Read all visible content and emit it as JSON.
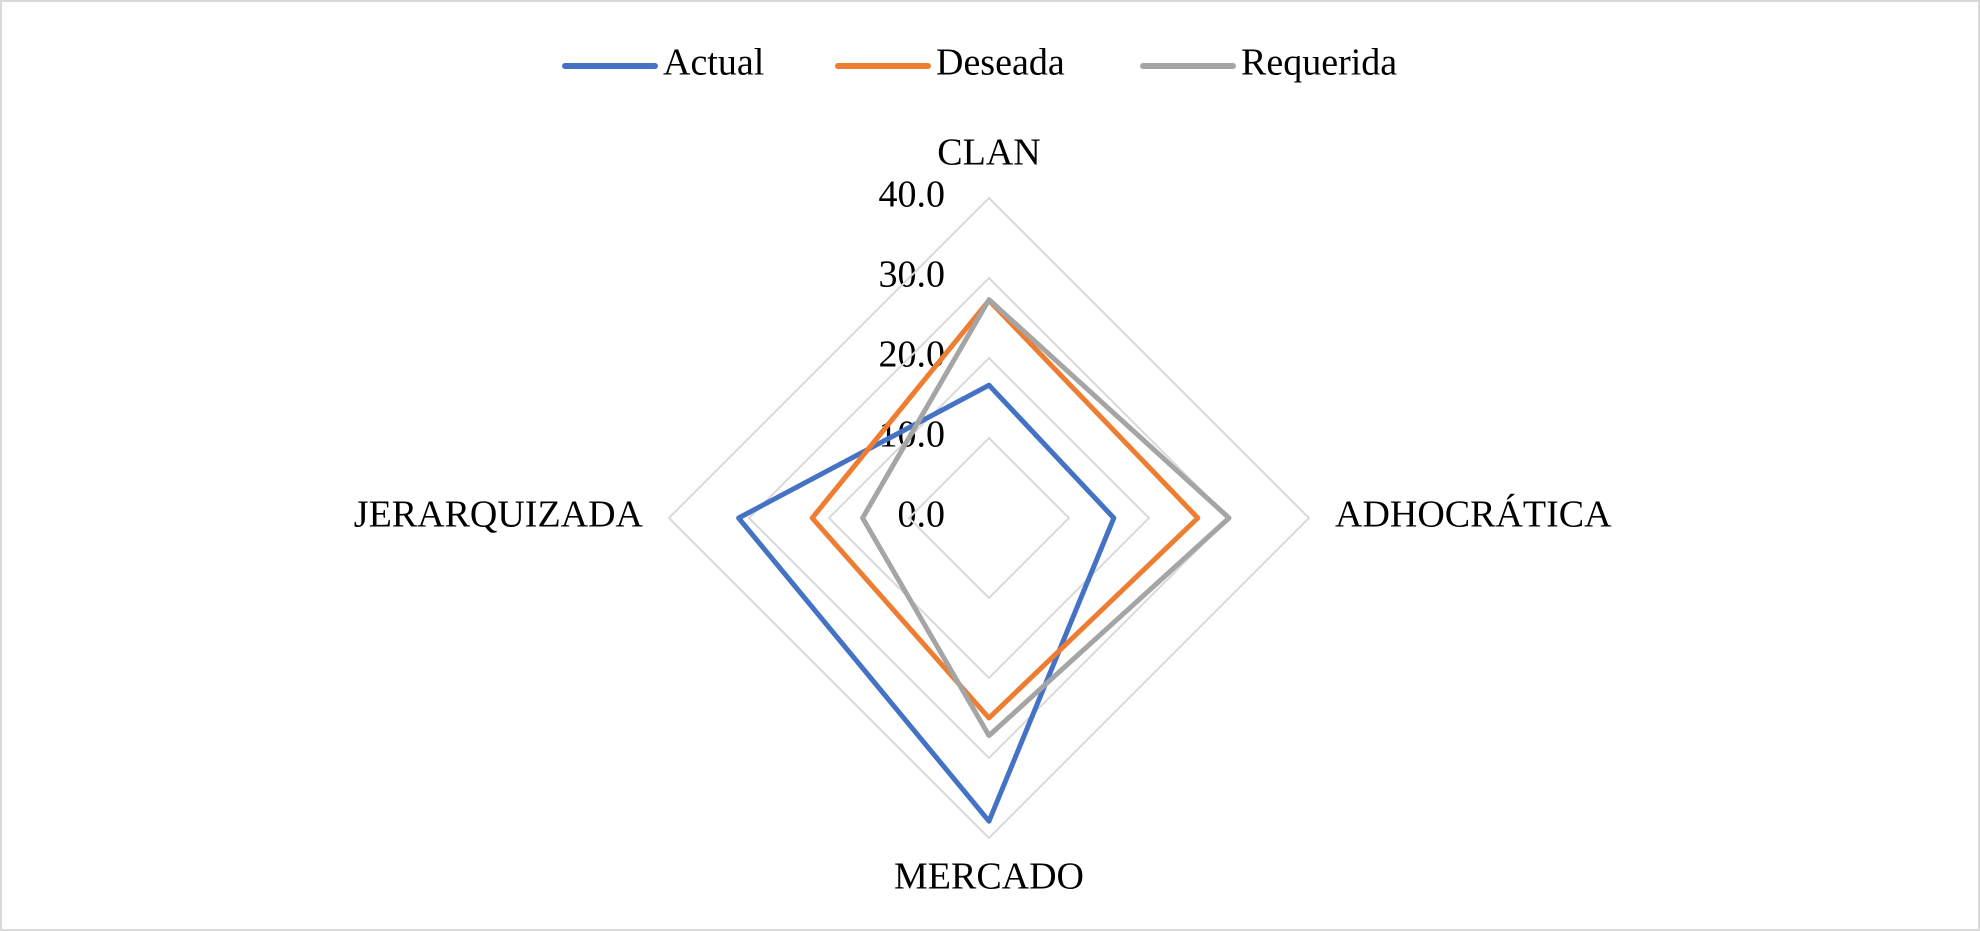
{
  "chart_data": {
    "type": "radar",
    "categories": [
      "CLAN",
      "ADHOCRÁTICA",
      "MERCADO",
      "JERARQUIZADA"
    ],
    "series": [
      {
        "name": "Actual",
        "color": "#4472c4",
        "values": [
          16.6,
          15.6,
          37.9,
          31.3
        ]
      },
      {
        "name": "Deseada",
        "color": "#ed7d31",
        "values": [
          27.2,
          26.1,
          25.0,
          22.1
        ]
      },
      {
        "name": "Requerida",
        "color": "#a5a5a5",
        "values": [
          27.3,
          30.0,
          27.2,
          15.8
        ]
      }
    ],
    "rlim": [
      0,
      40
    ],
    "rticks": [
      {
        "value": 0,
        "label": "0.0"
      },
      {
        "value": 10,
        "label": "10.0"
      },
      {
        "value": 20,
        "label": "20.0"
      },
      {
        "value": 30,
        "label": "30.0"
      },
      {
        "value": 40,
        "label": "40.0"
      }
    ],
    "grid": true,
    "legend": "top"
  }
}
